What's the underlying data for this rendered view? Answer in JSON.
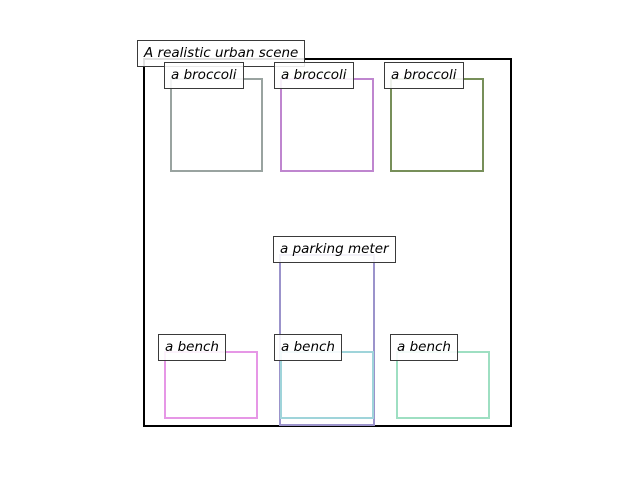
{
  "scene": {
    "caption": "A realistic urban scene",
    "frame_color": "#000000"
  },
  "objects": [
    {
      "label": "a broccoli",
      "color": "#99a3a0"
    },
    {
      "label": "a broccoli",
      "color": "#bf86cf"
    },
    {
      "label": "a broccoli",
      "color": "#778f59"
    },
    {
      "label": "a parking meter",
      "color": "#9b93cb"
    },
    {
      "label": "a bench",
      "color": "#e697e6"
    },
    {
      "label": "a bench",
      "color": "#9fd4da"
    },
    {
      "label": "a bench",
      "color": "#9edfc2"
    }
  ]
}
